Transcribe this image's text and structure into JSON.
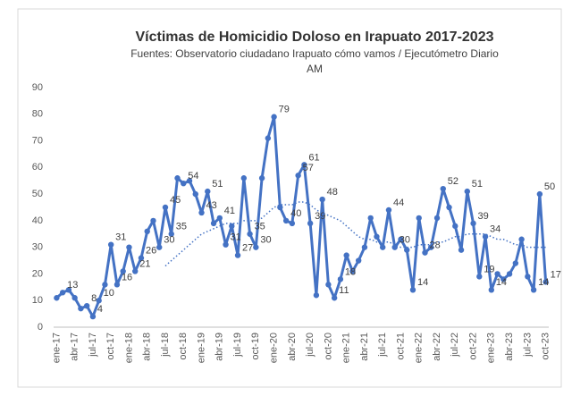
{
  "chart_data": {
    "type": "line",
    "title": "Víctimas de Homicidio Doloso en Irapuato 2017-2023",
    "subtitle": [
      "Fuentes: Observatorio ciudadano Irapuato cómo vamos / Ejecutómetro Diario",
      "AM"
    ],
    "categories": [
      "ene-17",
      null,
      null,
      "abr-17",
      null,
      null,
      "jul-17",
      null,
      null,
      "oct-17",
      null,
      null,
      "ene-18",
      null,
      null,
      "abr-18",
      null,
      null,
      "jul-18",
      null,
      null,
      "oct-18",
      null,
      null,
      "ene-19",
      null,
      null,
      "abr-19",
      null,
      null,
      "jul-19",
      null,
      null,
      "oct-19",
      null,
      null,
      "ene-20",
      null,
      null,
      "abr-20",
      null,
      null,
      "jul-20",
      null,
      null,
      "oct-20",
      null,
      null,
      "ene-21",
      null,
      null,
      "abr-21",
      null,
      null,
      "jul-21",
      null,
      null,
      "oct-21",
      null,
      null,
      "ene-22",
      null,
      null,
      "abr-22",
      null,
      null,
      "jul-22",
      null,
      null,
      "oct-22",
      null,
      null,
      "ene-23",
      null,
      null,
      "abr-23",
      null,
      null,
      "jul-23",
      null,
      null,
      "oct-23"
    ],
    "series": [
      {
        "color": "#4472c4",
        "values": [
          11,
          13,
          14,
          11,
          7,
          8,
          4,
          10,
          16,
          31,
          16,
          21,
          30,
          21,
          26,
          36,
          40,
          30,
          45,
          35,
          56,
          54,
          55,
          50,
          43,
          51,
          39,
          41,
          31,
          38,
          27,
          56,
          35,
          30,
          56,
          71,
          79,
          45,
          40,
          39,
          57,
          61,
          39,
          12,
          48,
          16,
          11,
          18,
          27,
          21,
          25,
          30,
          41,
          34,
          30,
          44,
          30,
          33,
          29,
          14,
          41,
          28,
          30,
          41,
          52,
          45,
          38,
          29,
          51,
          39,
          19,
          34,
          14,
          20,
          18,
          20,
          24,
          33,
          19,
          14,
          50,
          17
        ],
        "value_labels": [
          null,
          13,
          null,
          null,
          null,
          8,
          4,
          10,
          null,
          31,
          16,
          null,
          null,
          21,
          26,
          null,
          null,
          30,
          45,
          35,
          null,
          54,
          null,
          null,
          43,
          51,
          null,
          41,
          31,
          null,
          27,
          null,
          35,
          30,
          null,
          null,
          79,
          null,
          40,
          null,
          57,
          61,
          39,
          null,
          48,
          null,
          11,
          18,
          null,
          null,
          null,
          null,
          null,
          null,
          null,
          44,
          30,
          null,
          null,
          14,
          null,
          28,
          null,
          null,
          52,
          null,
          null,
          null,
          51,
          39,
          19,
          34,
          14,
          null,
          null,
          null,
          null,
          null,
          null,
          14,
          50,
          17
        ]
      },
      {
        "color": "#4472c4",
        "dotted": true,
        "values": [
          null,
          null,
          null,
          null,
          null,
          null,
          null,
          null,
          null,
          null,
          null,
          null,
          null,
          null,
          null,
          null,
          null,
          null,
          23,
          25,
          27,
          29,
          31,
          33,
          35,
          36,
          37,
          38,
          39,
          39,
          39,
          40,
          40,
          40,
          41,
          43,
          45,
          46,
          46,
          46,
          47,
          47,
          46,
          44,
          43,
          42,
          41,
          40,
          38,
          36,
          34,
          33,
          33,
          32,
          32,
          32,
          31,
          30,
          30,
          30,
          31,
          31,
          31,
          32,
          32,
          33,
          34,
          34,
          35,
          35,
          35,
          35,
          34,
          33,
          33,
          32,
          31,
          31,
          30,
          30,
          30,
          30
        ]
      }
    ],
    "ylim": [
      0,
      90
    ],
    "yticks": [
      0,
      10,
      20,
      30,
      40,
      50,
      60,
      70,
      80,
      90
    ]
  }
}
